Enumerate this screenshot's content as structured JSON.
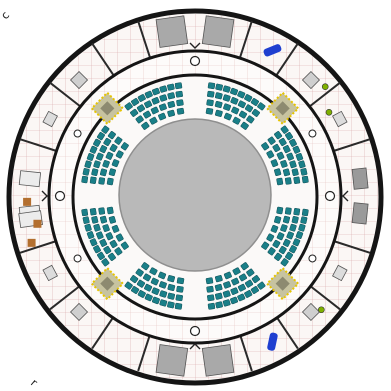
{
  "edge_fragments": {
    "top_left": "c",
    "top_right": "",
    "bottom_left": "r",
    "bottom_center": ""
  },
  "colors": {
    "seat": "#1a7f88",
    "seat_edge": "#0d4e54",
    "arena": "#b9b9b9",
    "ring_wall": "#151515",
    "floor_grid": "#d8a6a6",
    "room_wall": "#2a2a2a",
    "column_fill": "#c7c3a0",
    "column_frame": "#e6c400",
    "bed_blue": "#1f3fd0",
    "wood": "#b36f2f",
    "lamp": "#7fb000",
    "furniture": "#8c8c8c"
  },
  "icons": {
    "column": "structural-column-icon",
    "exit": "exit-marker-icon",
    "lamp": "light-fixture-icon"
  },
  "plan": {
    "ring_count": 3,
    "seating_banks": 8,
    "rows_per_bank": 4,
    "columns": 4
  }
}
